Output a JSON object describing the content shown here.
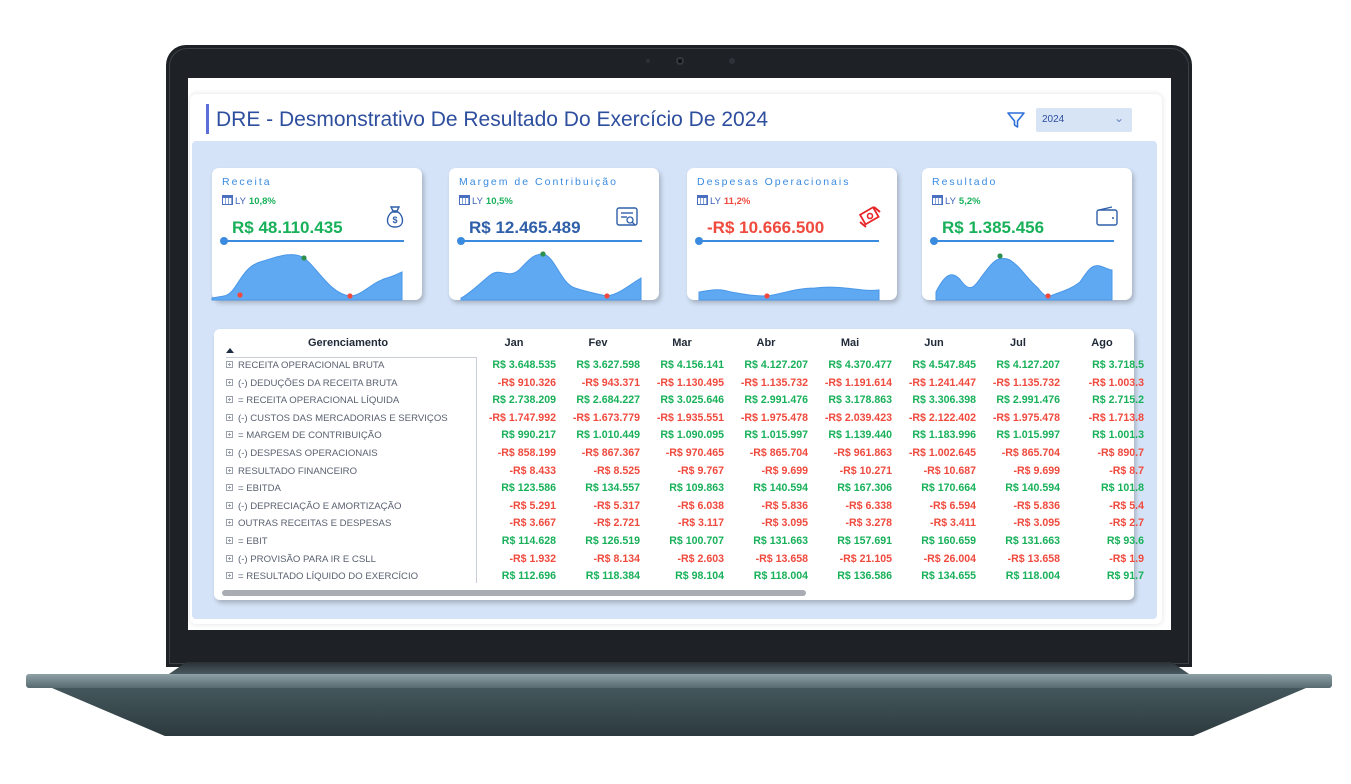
{
  "report": {
    "title": "DRE - Desmonstrativo De Resultado Do Exercício De 2024",
    "year_filter": {
      "value": "2024"
    }
  },
  "kpis": [
    {
      "title": "Receita",
      "ly_label": "LY",
      "ly_pct": "10,8%",
      "ly_trend": "positive",
      "value": "R$ 48.110.435",
      "value_tone": "positive",
      "icon": "money-bag-icon"
    },
    {
      "title": "Margem de Contribuição",
      "ly_label": "LY",
      "ly_pct": "10,5%",
      "ly_trend": "positive",
      "value": "R$ 12.465.489",
      "value_tone": "neutral",
      "icon": "invoice-icon"
    },
    {
      "title": "Despesas Operacionais",
      "ly_label": "LY",
      "ly_pct": "11,2%",
      "ly_trend": "negative",
      "value": "-R$ 10.666.500",
      "value_tone": "negative",
      "icon": "cash-transfer-icon"
    },
    {
      "title": "Resultado",
      "ly_label": "LY",
      "ly_pct": "5,2%",
      "ly_trend": "positive",
      "value": "R$ 1.385.456",
      "value_tone": "positive",
      "icon": "wallet-icon"
    }
  ],
  "colors": {
    "accent": "#3a8be0",
    "positive": "#18b15a",
    "negative": "#f04a3e",
    "title": "#2e4e9e",
    "background": "#d4e3f7"
  },
  "table": {
    "row_header": "Gerenciamento",
    "months": [
      "Jan",
      "Fev",
      "Mar",
      "Abr",
      "Mai",
      "Jun",
      "Jul",
      "Ago"
    ],
    "rows": [
      {
        "label": "RECEITA OPERACIONAL BRUTA",
        "values": [
          "R$ 3.648.535",
          "R$ 3.627.598",
          "R$ 4.156.141",
          "R$ 4.127.207",
          "R$ 4.370.477",
          "R$ 4.547.845",
          "R$ 4.127.207",
          "R$ 3.718.5"
        ]
      },
      {
        "label": "(-) DEDUÇÕES DA RECEITA BRUTA",
        "values": [
          "-R$ 910.326",
          "-R$ 943.371",
          "-R$ 1.130.495",
          "-R$ 1.135.732",
          "-R$ 1.191.614",
          "-R$ 1.241.447",
          "-R$ 1.135.732",
          "-R$ 1.003.3"
        ]
      },
      {
        "label": "= RECEITA OPERACIONAL LÍQUIDA",
        "values": [
          "R$ 2.738.209",
          "R$ 2.684.227",
          "R$ 3.025.646",
          "R$ 2.991.476",
          "R$ 3.178.863",
          "R$ 3.306.398",
          "R$ 2.991.476",
          "R$ 2.715.2"
        ]
      },
      {
        "label": "(-) CUSTOS DAS MERCADORIAS E SERVIÇOS",
        "values": [
          "-R$ 1.747.992",
          "-R$ 1.673.779",
          "-R$ 1.935.551",
          "-R$ 1.975.478",
          "-R$ 2.039.423",
          "-R$ 2.122.402",
          "-R$ 1.975.478",
          "-R$ 1.713.8"
        ]
      },
      {
        "label": "= MARGEM DE CONTRIBUIÇÃO",
        "values": [
          "R$ 990.217",
          "R$ 1.010.449",
          "R$ 1.090.095",
          "R$ 1.015.997",
          "R$ 1.139.440",
          "R$ 1.183.996",
          "R$ 1.015.997",
          "R$ 1.001.3"
        ]
      },
      {
        "label": "(-) DESPESAS OPERACIONAIS",
        "values": [
          "-R$ 858.199",
          "-R$ 867.367",
          "-R$ 970.465",
          "-R$ 865.704",
          "-R$ 961.863",
          "-R$ 1.002.645",
          "-R$ 865.704",
          "-R$ 890.7"
        ]
      },
      {
        "label": "RESULTADO FINANCEIRO",
        "values": [
          "-R$ 8.433",
          "-R$ 8.525",
          "-R$ 9.767",
          "-R$ 9.699",
          "-R$ 10.271",
          "-R$ 10.687",
          "-R$ 9.699",
          "-R$ 8.7"
        ]
      },
      {
        "label": "= EBITDA",
        "values": [
          "R$ 123.586",
          "R$ 134.557",
          "R$ 109.863",
          "R$ 140.594",
          "R$ 167.306",
          "R$ 170.664",
          "R$ 140.594",
          "R$ 101.8"
        ]
      },
      {
        "label": "(-) DEPRECIAÇÃO E AMORTIZAÇÃO",
        "values": [
          "-R$ 5.291",
          "-R$ 5.317",
          "-R$ 6.038",
          "-R$ 5.836",
          "-R$ 6.338",
          "-R$ 6.594",
          "-R$ 5.836",
          "-R$ 5.4"
        ]
      },
      {
        "label": "OUTRAS RECEITAS E DESPESAS",
        "values": [
          "-R$ 3.667",
          "-R$ 2.721",
          "-R$ 3.117",
          "-R$ 3.095",
          "-R$ 3.278",
          "-R$ 3.411",
          "-R$ 3.095",
          "-R$ 2.7"
        ]
      },
      {
        "label": "= EBIT",
        "values": [
          "R$ 114.628",
          "R$ 126.519",
          "R$ 100.707",
          "R$ 131.663",
          "R$ 157.691",
          "R$ 160.659",
          "R$ 131.663",
          "R$ 93.6"
        ]
      },
      {
        "label": "(-) PROVISÃO PARA IR E CSLL",
        "values": [
          "-R$ 1.932",
          "-R$ 8.134",
          "-R$ 2.603",
          "-R$ 13.658",
          "-R$ 21.105",
          "-R$ 26.004",
          "-R$ 13.658",
          "-R$ 1.9"
        ]
      },
      {
        "label": "= RESULTADO LÍQUIDO DO EXERCÍCIO",
        "values": [
          "R$ 112.696",
          "R$ 118.384",
          "R$ 98.104",
          "R$ 118.004",
          "R$ 136.586",
          "R$ 134.655",
          "R$ 118.004",
          "R$ 91.7"
        ]
      }
    ]
  }
}
